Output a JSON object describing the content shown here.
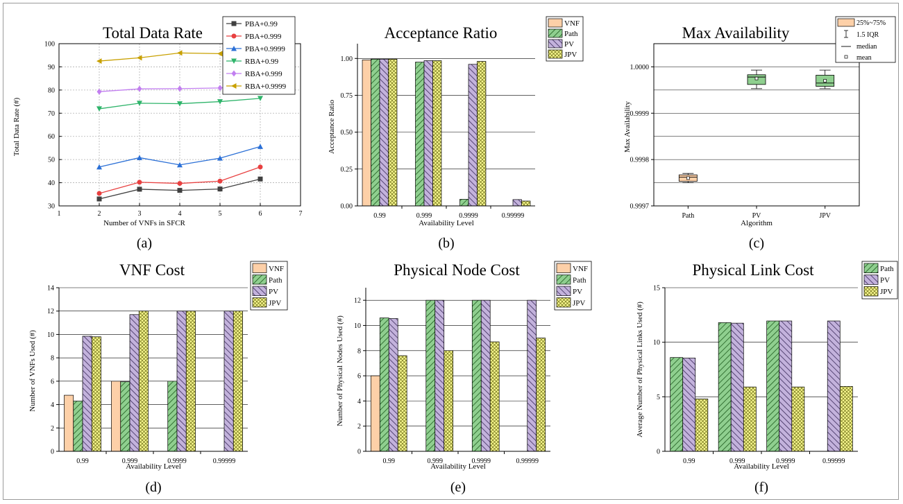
{
  "colors": {
    "VNF": "#fdd0a8",
    "Path": "#8fcf8f",
    "PV": "#c3b2dc",
    "JPV": "#fbfb92",
    "PBA+0.99": "#404040",
    "PBA+0.999": "#e84040",
    "PBA+0.9999": "#2a6fd6",
    "RBA+0.99": "#2eb46a",
    "RBA+0.999": "#c27ff0",
    "RBA+0.9999": "#c8a000"
  },
  "chart_data": [
    {
      "id": "a",
      "type": "line",
      "title": "Total Data Rate",
      "caption": "(a)",
      "xlabel": "Number of VNFs in SFCR",
      "ylabel": "Total Data Rate (#)",
      "xlim": [
        1,
        7
      ],
      "ylim": [
        30,
        100
      ],
      "xticks": [
        1,
        2,
        3,
        4,
        5,
        6,
        7
      ],
      "yticks": [
        30,
        40,
        50,
        60,
        70,
        80,
        90,
        100
      ],
      "grid": true,
      "legend": "top-right",
      "x": [
        2,
        3,
        4,
        5,
        6
      ],
      "series": [
        {
          "name": "PBA+0.99",
          "marker": "square",
          "values": [
            33.0,
            37.2,
            36.7,
            37.3,
            41.6
          ]
        },
        {
          "name": "PBA+0.999",
          "marker": "circle",
          "values": [
            35.4,
            40.2,
            39.7,
            40.7,
            46.8
          ]
        },
        {
          "name": "PBA+0.9999",
          "marker": "triangle-up",
          "values": [
            46.8,
            50.8,
            47.7,
            50.6,
            55.6
          ]
        },
        {
          "name": "RBA+0.99",
          "marker": "triangle-down",
          "values": [
            71.9,
            74.3,
            74.1,
            75.0,
            76.4
          ]
        },
        {
          "name": "RBA+0.999",
          "marker": "diamond",
          "values": [
            79.3,
            80.5,
            80.6,
            80.9,
            83.3
          ]
        },
        {
          "name": "RBA+0.9999",
          "marker": "triangle-left",
          "values": [
            92.5,
            93.9,
            96.0,
            95.7,
            96.0
          ]
        }
      ]
    },
    {
      "id": "b",
      "type": "bar",
      "title": "Acceptance Ratio",
      "caption": "(b)",
      "xlabel": "Availability Level",
      "ylabel": "Acceptance Ratio",
      "ylim": [
        0,
        1.1
      ],
      "yticks": [
        "0.00",
        "0.25",
        "0.50",
        "0.75",
        "1.00"
      ],
      "ytick_values": [
        0,
        0.25,
        0.5,
        0.75,
        1.0
      ],
      "categories": [
        "0.99",
        "0.999",
        "0.9999",
        "0.99999"
      ],
      "legend": "top-right",
      "series": [
        {
          "name": "VNF",
          "values": [
            0.99,
            0,
            0,
            0
          ]
        },
        {
          "name": "Path",
          "values": [
            0.995,
            0.975,
            0.045,
            0
          ]
        },
        {
          "name": "PV",
          "values": [
            0.995,
            0.985,
            0.96,
            0.043
          ]
        },
        {
          "name": "JPV",
          "values": [
            0.995,
            0.985,
            0.98,
            0.033
          ]
        }
      ]
    },
    {
      "id": "c",
      "type": "box",
      "title": "Max Availability",
      "caption": "(c)",
      "xlabel": "Algorithm",
      "ylabel": "Max Availability",
      "ylim": [
        0.9997,
        1.00005
      ],
      "yticks": [
        "0.9997",
        "0.9998",
        "0.9999",
        "1.0000"
      ],
      "ytick_values": [
        0.9997,
        0.9998,
        0.9999,
        1.0
      ],
      "categories": [
        "Path",
        "PV",
        "JPV"
      ],
      "legend_labels": [
        "25%~75%",
        "1.5 IQR",
        "median",
        "mean"
      ],
      "boxes": [
        {
          "name": "Path",
          "whisker_low": 0.99975,
          "q1": 0.999753,
          "median": 0.999762,
          "q3": 0.999767,
          "whisker_high": 0.99977,
          "mean": 0.99976
        },
        {
          "name": "PV",
          "whisker_low": 0.999953,
          "q1": 0.999962,
          "median": 0.999978,
          "q3": 0.999983,
          "whisker_high": 0.999993,
          "mean": 0.999975
        },
        {
          "name": "JPV",
          "whisker_low": 0.999953,
          "q1": 0.999958,
          "median": 0.999965,
          "q3": 0.999982,
          "whisker_high": 0.999993,
          "mean": 0.99997
        }
      ]
    },
    {
      "id": "d",
      "type": "bar",
      "title": "VNF Cost",
      "caption": "(d)",
      "xlabel": "Availability Level",
      "ylabel": "Number of  VNFs Used (#)",
      "ylim": [
        0,
        14
      ],
      "yticks": [
        "0",
        "2",
        "4",
        "6",
        "8",
        "10",
        "12",
        "14"
      ],
      "ytick_values": [
        0,
        2,
        4,
        6,
        8,
        10,
        12,
        14
      ],
      "categories": [
        "0.99",
        "0.999",
        "0.9999",
        "0.99999"
      ],
      "legend": "top-right",
      "series": [
        {
          "name": "VNF",
          "values": [
            4.8,
            6.0,
            0,
            0
          ]
        },
        {
          "name": "Path",
          "values": [
            4.3,
            5.95,
            6.0,
            0
          ]
        },
        {
          "name": "PV",
          "values": [
            9.85,
            11.7,
            12.0,
            12.0
          ]
        },
        {
          "name": "JPV",
          "values": [
            9.8,
            12.0,
            12.0,
            12.0
          ]
        }
      ]
    },
    {
      "id": "e",
      "type": "bar",
      "title": "Physical Node Cost",
      "caption": "(e)",
      "xlabel": "Availability Level",
      "ylabel": "Number of Physical Nodes Used (#)",
      "ylim": [
        0,
        13
      ],
      "yticks": [
        "0",
        "2",
        "4",
        "6",
        "8",
        "10",
        "12"
      ],
      "ytick_values": [
        0,
        2,
        4,
        6,
        8,
        10,
        12
      ],
      "categories": [
        "0.99",
        "0.999",
        "0.9999",
        "0.99999"
      ],
      "legend": "top-right",
      "series": [
        {
          "name": "VNF",
          "values": [
            6.0,
            0,
            0,
            0
          ]
        },
        {
          "name": "Path",
          "values": [
            10.6,
            12.0,
            12.0,
            0
          ]
        },
        {
          "name": "PV",
          "values": [
            10.55,
            12.0,
            12.0,
            12.0
          ]
        },
        {
          "name": "JPV",
          "values": [
            7.6,
            8.0,
            8.7,
            9.0
          ]
        }
      ]
    },
    {
      "id": "f",
      "type": "bar",
      "title": "Physical Link Cost",
      "caption": "(f)",
      "xlabel": "Availability Level",
      "ylabel": "Average Number of Physical Links Used (#)",
      "ylim": [
        0,
        15
      ],
      "yticks": [
        "0",
        "5",
        "10",
        "15"
      ],
      "ytick_values": [
        0,
        5,
        10,
        15
      ],
      "categories": [
        "0.99",
        "0.999",
        "0.9999",
        "0.99999"
      ],
      "legend": "top-right",
      "series": [
        {
          "name": "Path",
          "values": [
            8.6,
            11.8,
            11.95,
            0
          ]
        },
        {
          "name": "PV",
          "values": [
            8.55,
            11.75,
            11.95,
            11.95
          ]
        },
        {
          "name": "JPV",
          "values": [
            4.8,
            5.9,
            5.9,
            5.95
          ]
        }
      ]
    }
  ]
}
